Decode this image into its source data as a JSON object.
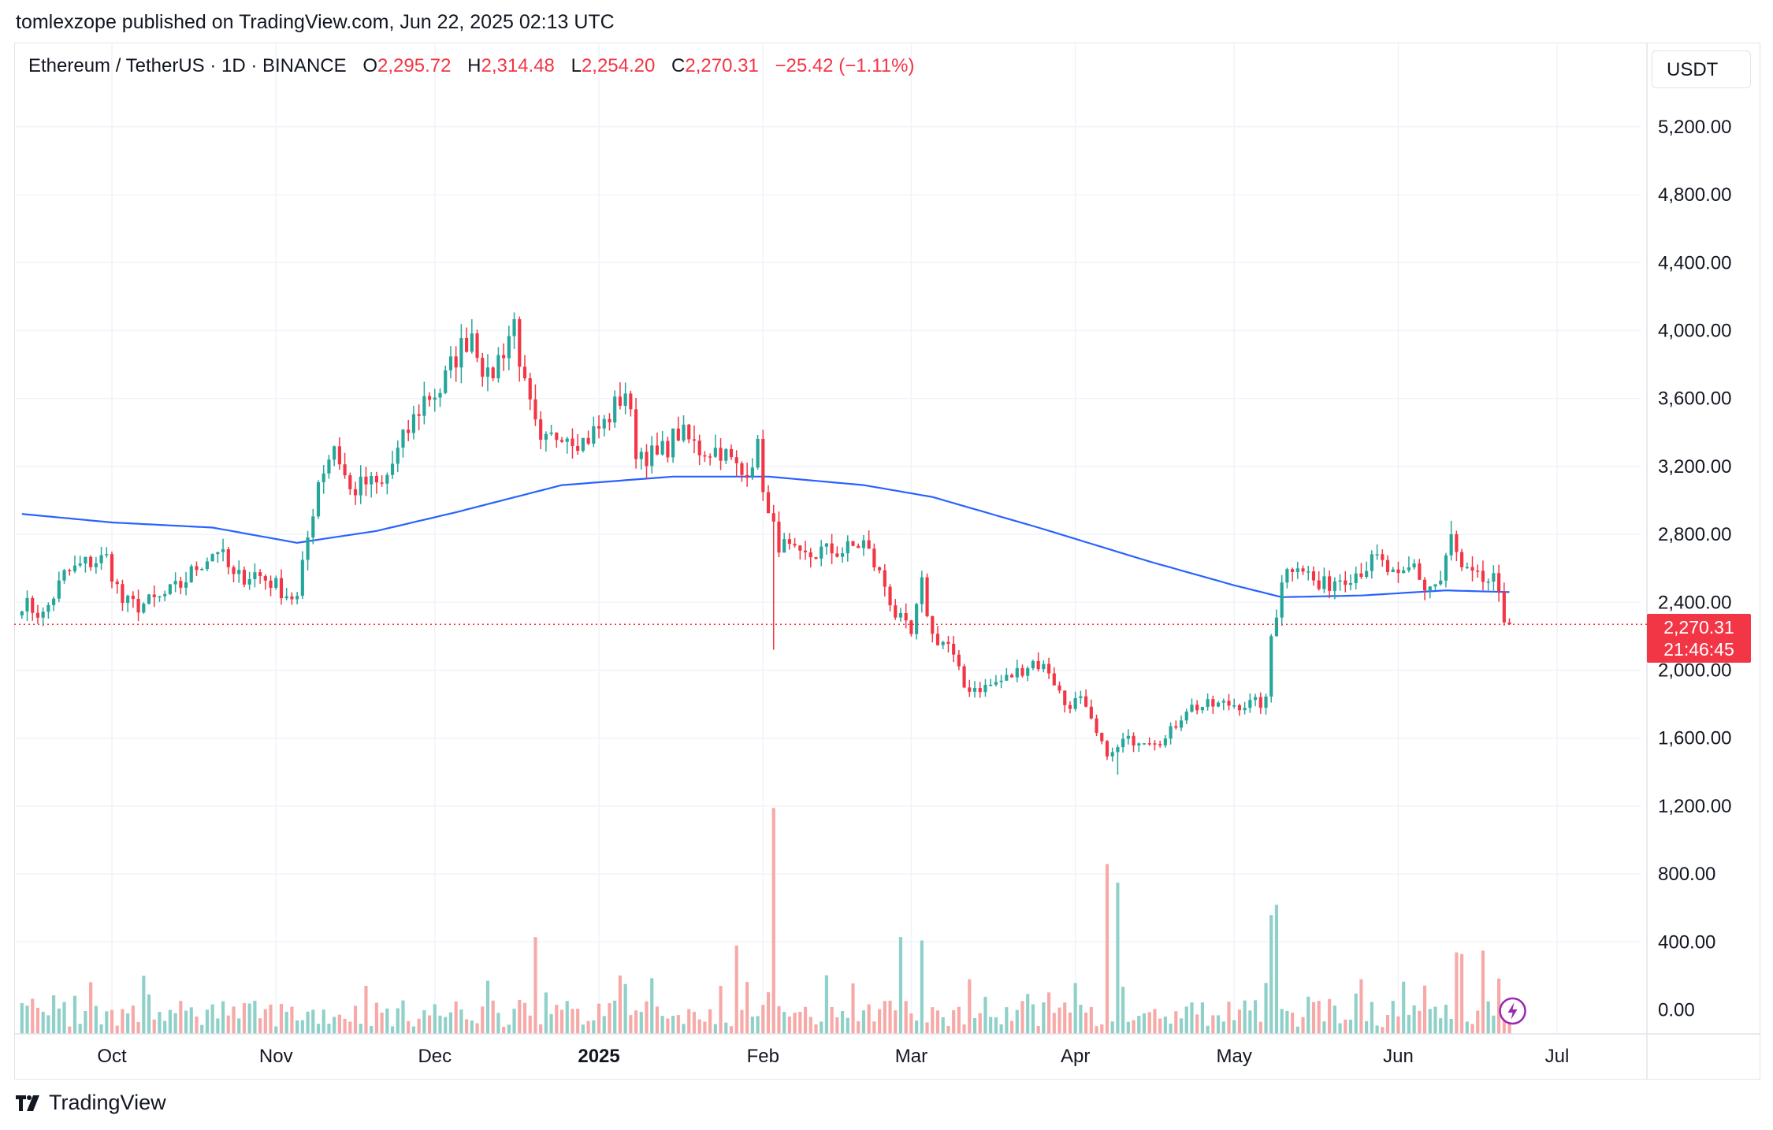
{
  "header": {
    "publisher_text": "tomlexzope published on TradingView.com, Jun 22, 2025 02:13 UTC"
  },
  "legend": {
    "symbol": "Ethereum / TetherUS · 1D · BINANCE",
    "open_label": "O",
    "open": "2,295.72",
    "high_label": "H",
    "high": "2,314.48",
    "low_label": "L",
    "low": "2,254.20",
    "close_label": "C",
    "close": "2,270.31",
    "change": "−25.42 (−1.11%)"
  },
  "currency_button": "USDT",
  "price_badge": {
    "price": "2,270.31",
    "countdown": "21:46:45"
  },
  "footer": {
    "brand": "TradingView",
    "logo_icon": "tradingview-logo-icon"
  },
  "colors": {
    "up": "#26a69a",
    "down": "#f23645",
    "ma": "#2962ff",
    "vol_up": "#8fd0c8",
    "vol_down": "#f7a9a7"
  },
  "chart_data": {
    "type": "candlestick",
    "symbol": "ETHUSDT",
    "interval": "1D",
    "y_axis": {
      "ticks": [
        0,
        400,
        800,
        1200,
        1600,
        2000,
        2400,
        2800,
        3200,
        3600,
        4000,
        4400,
        4800,
        5200
      ],
      "tick_labels": [
        "0.00",
        "400.00",
        "800.00",
        "1,200.00",
        "1,600.00",
        "2,000.00",
        "2,400.00",
        "2,800.00",
        "3,200.00",
        "3,600.00",
        "4,000.00",
        "4,400.00",
        "4,800.00",
        "5,200.00"
      ],
      "position": "right"
    },
    "x_axis": {
      "labels": [
        "Oct",
        "Nov",
        "Dec",
        "2025",
        "Feb",
        "Mar",
        "Apr",
        "May",
        "Jun",
        "Jul"
      ],
      "label_dates": [
        "2024-10-01",
        "2024-11-01",
        "2024-12-01",
        "2025-01-01",
        "2025-02-01",
        "2025-03-01",
        "2025-04-01",
        "2025-05-01",
        "2025-06-01",
        "2025-07-01"
      ]
    },
    "start_date": "2024-09-14",
    "last_close": 2270.31,
    "close_path": [
      [
        "2024-09-14",
        2400
      ],
      [
        "2024-09-18",
        2320
      ],
      [
        "2024-09-22",
        2560
      ],
      [
        "2024-09-26",
        2630
      ],
      [
        "2024-09-30",
        2660
      ],
      [
        "2024-10-03",
        2400
      ],
      [
        "2024-10-06",
        2380
      ],
      [
        "2024-10-10",
        2420
      ],
      [
        "2024-10-14",
        2500
      ],
      [
        "2024-10-17",
        2610
      ],
      [
        "2024-10-21",
        2720
      ],
      [
        "2024-10-24",
        2540
      ],
      [
        "2024-10-28",
        2570
      ],
      [
        "2024-10-31",
        2520
      ],
      [
        "2024-11-03",
        2450
      ],
      [
        "2024-11-05",
        2420
      ],
      [
        "2024-11-07",
        2780
      ],
      [
        "2024-11-09",
        3120
      ],
      [
        "2024-11-12",
        3330
      ],
      [
        "2024-11-15",
        3050
      ],
      [
        "2024-11-18",
        3100
      ],
      [
        "2024-11-21",
        3080
      ],
      [
        "2024-11-25",
        3350
      ],
      [
        "2024-11-29",
        3600
      ],
      [
        "2024-12-02",
        3650
      ],
      [
        "2024-12-05",
        3850
      ],
      [
        "2024-12-08",
        4000
      ],
      [
        "2024-12-11",
        3700
      ],
      [
        "2024-12-14",
        3900
      ],
      [
        "2024-12-16",
        4050
      ],
      [
        "2024-12-18",
        3650
      ],
      [
        "2024-12-21",
        3300
      ],
      [
        "2024-12-25",
        3420
      ],
      [
        "2024-12-29",
        3350
      ],
      [
        "2025-01-02",
        3450
      ],
      [
        "2025-01-06",
        3650
      ],
      [
        "2025-01-08",
        3300
      ],
      [
        "2025-01-12",
        3250
      ],
      [
        "2025-01-16",
        3400
      ],
      [
        "2025-01-20",
        3300
      ],
      [
        "2025-01-24",
        3300
      ],
      [
        "2025-01-28",
        3150
      ],
      [
        "2025-01-31",
        3300
      ],
      [
        "2025-02-02",
        2900
      ],
      [
        "2025-02-04",
        2750
      ],
      [
        "2025-02-08",
        2650
      ],
      [
        "2025-02-12",
        2700
      ],
      [
        "2025-02-16",
        2700
      ],
      [
        "2025-02-20",
        2750
      ],
      [
        "2025-02-24",
        2500
      ],
      [
        "2025-02-26",
        2330
      ],
      [
        "2025-03-01",
        2200
      ],
      [
        "2025-03-03",
        2500
      ],
      [
        "2025-03-05",
        2200
      ],
      [
        "2025-03-08",
        2150
      ],
      [
        "2025-03-11",
        1900
      ],
      [
        "2025-03-15",
        1900
      ],
      [
        "2025-03-19",
        1950
      ],
      [
        "2025-03-24",
        2050
      ],
      [
        "2025-03-27",
        2000
      ],
      [
        "2025-03-30",
        1800
      ],
      [
        "2025-04-02",
        1820
      ],
      [
        "2025-04-06",
        1550
      ],
      [
        "2025-04-08",
        1500
      ],
      [
        "2025-04-10",
        1580
      ],
      [
        "2025-04-14",
        1600
      ],
      [
        "2025-04-18",
        1590
      ],
      [
        "2025-04-22",
        1780
      ],
      [
        "2025-04-26",
        1790
      ],
      [
        "2025-04-30",
        1800
      ],
      [
        "2025-05-04",
        1800
      ],
      [
        "2025-05-07",
        1810
      ],
      [
        "2025-05-08",
        2200
      ],
      [
        "2025-05-09",
        2350
      ],
      [
        "2025-05-10",
        2550
      ],
      [
        "2025-05-13",
        2650
      ],
      [
        "2025-05-17",
        2480
      ],
      [
        "2025-05-21",
        2550
      ],
      [
        "2025-05-24",
        2580
      ],
      [
        "2025-05-28",
        2650
      ],
      [
        "2025-06-01",
        2520
      ],
      [
        "2025-06-04",
        2620
      ],
      [
        "2025-06-06",
        2480
      ],
      [
        "2025-06-09",
        2520
      ],
      [
        "2025-06-11",
        2780
      ],
      [
        "2025-06-13",
        2580
      ],
      [
        "2025-06-16",
        2530
      ],
      [
        "2025-06-19",
        2520
      ],
      [
        "2025-06-20",
        2410
      ],
      [
        "2025-06-21",
        2296
      ],
      [
        "2025-06-22",
        2270.31
      ]
    ],
    "extremes": [
      {
        "date": "2024-12-16",
        "high": 4107
      },
      {
        "date": "2025-02-03",
        "low": 2120
      },
      {
        "date": "2025-04-09",
        "low": 1385
      },
      {
        "date": "2025-06-11",
        "high": 2880
      }
    ],
    "moving_average": {
      "period": 200,
      "points": [
        [
          "2024-09-14",
          2920
        ],
        [
          "2024-10-01",
          2870
        ],
        [
          "2024-10-20",
          2840
        ],
        [
          "2024-11-05",
          2750
        ],
        [
          "2024-11-20",
          2820
        ],
        [
          "2024-12-05",
          2930
        ],
        [
          "2024-12-25",
          3090
        ],
        [
          "2025-01-15",
          3140
        ],
        [
          "2025-02-02",
          3140
        ],
        [
          "2025-02-20",
          3090
        ],
        [
          "2025-03-05",
          3020
        ],
        [
          "2025-03-25",
          2840
        ],
        [
          "2025-04-15",
          2640
        ],
        [
          "2025-05-01",
          2500
        ],
        [
          "2025-05-10",
          2430
        ],
        [
          "2025-05-25",
          2440
        ],
        [
          "2025-06-10",
          2470
        ],
        [
          "2025-06-22",
          2460
        ]
      ]
    },
    "volume": {
      "unit": "thousand",
      "axis_label": "0.00",
      "base_range": [
        40,
        200
      ],
      "spikes": [
        [
          "2024-12-20",
          570
        ],
        [
          "2025-01-27",
          520
        ],
        [
          "2025-02-03",
          1330
        ],
        [
          "2025-02-27",
          570
        ],
        [
          "2025-03-03",
          550
        ],
        [
          "2025-04-07",
          1000
        ],
        [
          "2025-04-09",
          890
        ],
        [
          "2025-05-08",
          700
        ],
        [
          "2025-05-09",
          760
        ],
        [
          "2025-06-12",
          480
        ],
        [
          "2025-06-13",
          470
        ],
        [
          "2025-06-17",
          490
        ]
      ]
    },
    "grid": true,
    "legend_position": "top-left"
  }
}
